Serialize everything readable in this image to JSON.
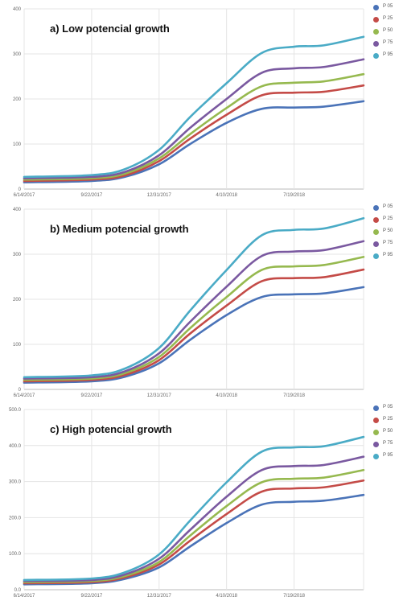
{
  "chart_data": [
    {
      "type": "line",
      "title": "a) Low potencial growth",
      "x_ticks": [
        "6/14/2017",
        "9/22/2017",
        "12/31/2017",
        "4/10/2018",
        "7/19/2018"
      ],
      "x_range": [
        "2017-06-14",
        "2018-10-30"
      ],
      "ylim": [
        0,
        400
      ],
      "y_ticks": [
        0,
        100,
        200,
        300,
        400
      ],
      "y_tick_labels": [
        "0",
        "100",
        "200",
        "300",
        "400"
      ],
      "grid": true,
      "legend_position": "right",
      "series": [
        {
          "name": "P 05",
          "color": "#4a73b8",
          "x": [
            "2017-06-14",
            "2017-09-22",
            "2017-11-10",
            "2017-12-31",
            "2018-02-15",
            "2018-04-10",
            "2018-06-01",
            "2018-07-19",
            "2018-09-01",
            "2018-10-30"
          ],
          "values": [
            15,
            18,
            27,
            55,
            100,
            147,
            178,
            181,
            183,
            195
          ]
        },
        {
          "name": "P 25",
          "color": "#c44b47",
          "x": [
            "2017-06-14",
            "2017-09-22",
            "2017-11-10",
            "2017-12-31",
            "2018-02-15",
            "2018-04-10",
            "2018-06-01",
            "2018-07-19",
            "2018-09-01",
            "2018-10-30"
          ],
          "values": [
            18,
            21,
            30,
            62,
            112,
            165,
            208,
            214,
            216,
            230
          ]
        },
        {
          "name": "P 50",
          "color": "#96b94f",
          "x": [
            "2017-06-14",
            "2017-09-22",
            "2017-11-10",
            "2017-12-31",
            "2018-02-15",
            "2018-04-10",
            "2018-06-01",
            "2018-07-19",
            "2018-09-01",
            "2018-10-30"
          ],
          "values": [
            21,
            24,
            34,
            68,
            122,
            180,
            228,
            236,
            239,
            255
          ]
        },
        {
          "name": "P 75",
          "color": "#7a59a0",
          "x": [
            "2017-06-14",
            "2017-09-22",
            "2017-11-10",
            "2017-12-31",
            "2018-02-15",
            "2018-04-10",
            "2018-06-01",
            "2018-07-19",
            "2018-09-01",
            "2018-10-30"
          ],
          "values": [
            24,
            27,
            38,
            75,
            136,
            200,
            258,
            268,
            271,
            288
          ]
        },
        {
          "name": "P 95",
          "color": "#4aabc6",
          "x": [
            "2017-06-14",
            "2017-09-22",
            "2017-11-10",
            "2017-12-31",
            "2018-02-15",
            "2018-04-10",
            "2018-06-01",
            "2018-07-19",
            "2018-09-01",
            "2018-10-30"
          ],
          "values": [
            27,
            31,
            44,
            87,
            160,
            235,
            302,
            316,
            319,
            338
          ]
        }
      ]
    },
    {
      "type": "line",
      "title": "b) Medium potencial growth",
      "x_ticks": [
        "6/14/2017",
        "9/22/2017",
        "12/31/2017",
        "4/10/2018",
        "7/19/2018"
      ],
      "x_range": [
        "2017-06-14",
        "2018-10-30"
      ],
      "ylim": [
        0,
        400
      ],
      "y_ticks": [
        0,
        100,
        200,
        300,
        400
      ],
      "y_tick_labels": [
        "0",
        "100",
        "200",
        "300",
        "400"
      ],
      "grid": true,
      "legend_position": "right",
      "series": [
        {
          "name": "P 05",
          "color": "#4a73b8",
          "x": [
            "2017-06-14",
            "2017-09-22",
            "2017-11-10",
            "2017-12-31",
            "2018-02-15",
            "2018-04-10",
            "2018-06-01",
            "2018-07-19",
            "2018-09-01",
            "2018-10-30"
          ],
          "values": [
            15,
            18,
            28,
            58,
            110,
            165,
            205,
            211,
            213,
            227
          ]
        },
        {
          "name": "P 25",
          "color": "#c44b47",
          "x": [
            "2017-06-14",
            "2017-09-22",
            "2017-11-10",
            "2017-12-31",
            "2018-02-15",
            "2018-04-10",
            "2018-06-01",
            "2018-07-19",
            "2018-09-01",
            "2018-10-30"
          ],
          "values": [
            18,
            21,
            32,
            65,
            124,
            186,
            240,
            247,
            249,
            266
          ]
        },
        {
          "name": "P 50",
          "color": "#96b94f",
          "x": [
            "2017-06-14",
            "2017-09-22",
            "2017-11-10",
            "2017-12-31",
            "2018-02-15",
            "2018-04-10",
            "2018-06-01",
            "2018-07-19",
            "2018-09-01",
            "2018-10-30"
          ],
          "values": [
            21,
            24,
            36,
            72,
            136,
            205,
            265,
            273,
            276,
            294
          ]
        },
        {
          "name": "P 75",
          "color": "#7a59a0",
          "x": [
            "2017-06-14",
            "2017-09-22",
            "2017-11-10",
            "2017-12-31",
            "2018-02-15",
            "2018-04-10",
            "2018-06-01",
            "2018-07-19",
            "2018-09-01",
            "2018-10-30"
          ],
          "values": [
            24,
            27,
            40,
            80,
            150,
            228,
            296,
            306,
            309,
            329
          ]
        },
        {
          "name": "P 95",
          "color": "#4aabc6",
          "x": [
            "2017-06-14",
            "2017-09-22",
            "2017-11-10",
            "2017-12-31",
            "2018-02-15",
            "2018-04-10",
            "2018-06-01",
            "2018-07-19",
            "2018-09-01",
            "2018-10-30"
          ],
          "values": [
            27,
            31,
            46,
            92,
            175,
            265,
            342,
            354,
            357,
            380
          ]
        }
      ]
    },
    {
      "type": "line",
      "title": "c) High potencial growth",
      "x_ticks": [
        "6/14/2017",
        "9/22/2017",
        "12/31/2017",
        "4/10/2018",
        "7/19/2018"
      ],
      "x_range": [
        "2017-06-14",
        "2018-10-30"
      ],
      "ylim": [
        0,
        500
      ],
      "y_ticks": [
        0,
        100,
        200,
        300,
        400,
        500
      ],
      "y_tick_labels": [
        "0.0",
        "100.0",
        "200.0",
        "300.0",
        "400.0",
        "500.0"
      ],
      "grid": true,
      "legend_position": "right",
      "series": [
        {
          "name": "P 05",
          "color": "#4a73b8",
          "x": [
            "2017-06-14",
            "2017-09-22",
            "2017-11-10",
            "2017-12-31",
            "2018-02-15",
            "2018-04-10",
            "2018-06-01",
            "2018-07-19",
            "2018-09-01",
            "2018-10-30"
          ],
          "values": [
            15,
            18,
            30,
            62,
            120,
            185,
            236,
            244,
            247,
            263
          ]
        },
        {
          "name": "P 25",
          "color": "#c44b47",
          "x": [
            "2017-06-14",
            "2017-09-22",
            "2017-11-10",
            "2017-12-31",
            "2018-02-15",
            "2018-04-10",
            "2018-06-01",
            "2018-07-19",
            "2018-09-01",
            "2018-10-30"
          ],
          "values": [
            18,
            21,
            34,
            70,
            136,
            210,
            272,
            281,
            284,
            303
          ]
        },
        {
          "name": "P 50",
          "color": "#96b94f",
          "x": [
            "2017-06-14",
            "2017-09-22",
            "2017-11-10",
            "2017-12-31",
            "2018-02-15",
            "2018-04-10",
            "2018-06-01",
            "2018-07-19",
            "2018-09-01",
            "2018-10-30"
          ],
          "values": [
            21,
            24,
            38,
            77,
            150,
            232,
            298,
            308,
            311,
            332
          ]
        },
        {
          "name": "P 75",
          "color": "#7a59a0",
          "x": [
            "2017-06-14",
            "2017-09-22",
            "2017-11-10",
            "2017-12-31",
            "2018-02-15",
            "2018-04-10",
            "2018-06-01",
            "2018-07-19",
            "2018-09-01",
            "2018-10-30"
          ],
          "values": [
            24,
            27,
            42,
            86,
            166,
            258,
            332,
            343,
            346,
            369
          ]
        },
        {
          "name": "P 95",
          "color": "#4aabc6",
          "x": [
            "2017-06-14",
            "2017-09-22",
            "2017-11-10",
            "2017-12-31",
            "2018-02-15",
            "2018-04-10",
            "2018-06-01",
            "2018-07-19",
            "2018-09-01",
            "2018-10-30"
          ],
          "values": [
            27,
            31,
            48,
            98,
            192,
            298,
            383,
            395,
            398,
            424
          ]
        }
      ]
    }
  ]
}
